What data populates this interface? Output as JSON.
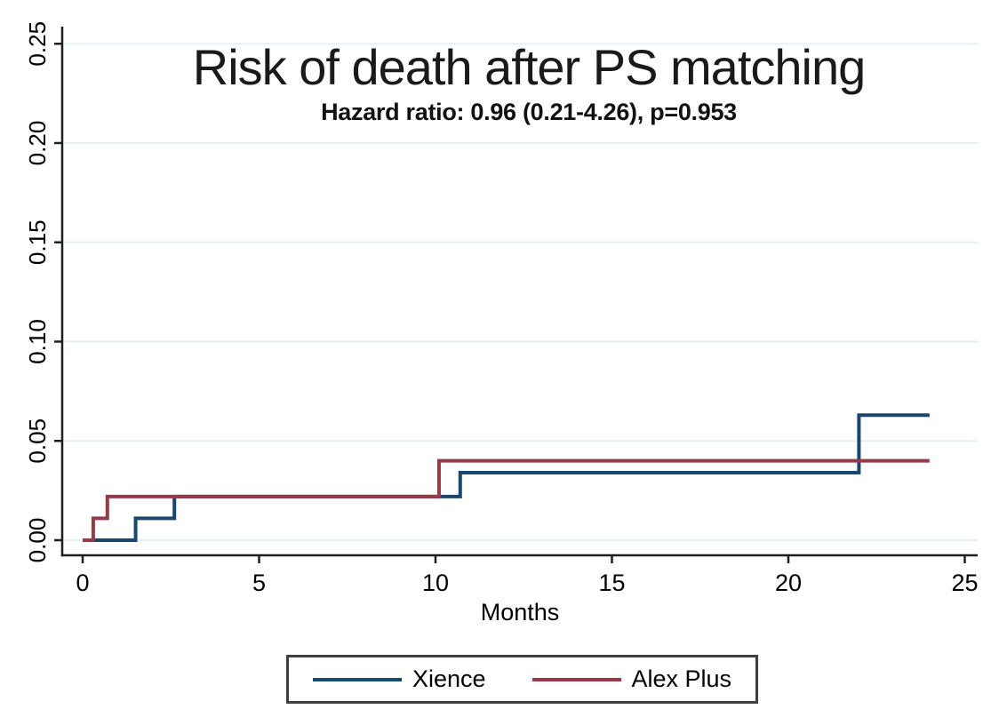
{
  "figure": {
    "title": "Risk of death after PS matching",
    "subtitle": "Hazard ratio: 0.96 (0.21-4.26), p=0.953"
  },
  "axes": {
    "x": {
      "label": "Months",
      "tick_labels": [
        "0",
        "5",
        "10",
        "15",
        "20",
        "25"
      ],
      "tick_values": [
        0,
        5,
        10,
        15,
        20,
        25
      ],
      "range": [
        0,
        25.4
      ]
    },
    "y": {
      "label": "",
      "tick_labels": [
        "0.00",
        "0.05",
        "0.10",
        "0.15",
        "0.20",
        "0.25"
      ],
      "tick_values": [
        0,
        0.05,
        0.1,
        0.15,
        0.2,
        0.25
      ],
      "range": [
        0,
        0.2586
      ]
    }
  },
  "legend": {
    "position": "bottom",
    "items": [
      {
        "label": "Xience",
        "color": "#1a476f"
      },
      {
        "label": "Alex Plus",
        "color": "#943b47"
      }
    ]
  },
  "colors": {
    "background": "#ffffff",
    "grid": "#e6f0f2",
    "axis": "#1f1f1f",
    "text": "#000000",
    "xience_line": "#1a476f",
    "alex_plus_line": "#943b47"
  },
  "chart_data": {
    "type": "line",
    "subtype": "kaplan-meier-cumulative-incidence-step",
    "title": "Risk of death after PS matching",
    "subtitle": "Hazard ratio: 0.96 (0.21-4.26), p=0.953",
    "xlabel": "Months",
    "ylabel": "",
    "xlim": [
      0,
      25.4
    ],
    "ylim": [
      0,
      0.2586
    ],
    "grid": true,
    "legend_position": "bottom",
    "series": [
      {
        "name": "Xience",
        "color": "#1a476f",
        "steps": [
          [
            0,
            0
          ],
          [
            1.5,
            0.011
          ],
          [
            2.6,
            0.022
          ],
          [
            10.7,
            0.034
          ],
          [
            22.0,
            0.063
          ],
          [
            24.0,
            0.063
          ]
        ]
      },
      {
        "name": "Alex Plus",
        "color": "#943b47",
        "steps": [
          [
            0,
            0
          ],
          [
            0.3,
            0.011
          ],
          [
            0.7,
            0.022
          ],
          [
            10.1,
            0.04
          ],
          [
            24.0,
            0.04
          ]
        ]
      }
    ]
  }
}
